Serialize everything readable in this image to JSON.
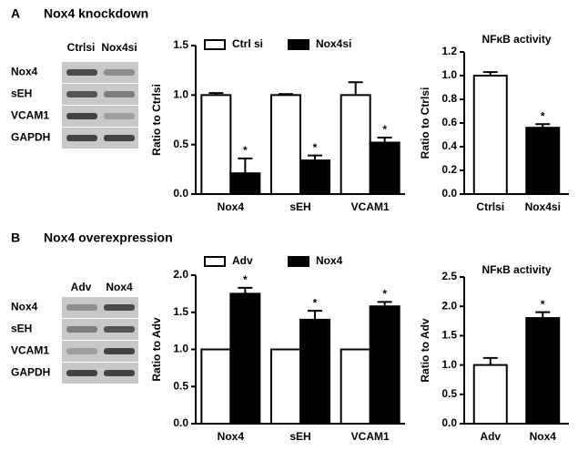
{
  "panels": [
    {
      "letter": "A",
      "title": "Nox4 knockdown",
      "blot": {
        "lanes": [
          "Ctrlsi",
          "Nox4si"
        ],
        "rows": [
          "Nox4",
          "sEH",
          "VCAM1",
          "GAPDH"
        ]
      }
    },
    {
      "letter": "B",
      "title": "Nox4 overexpression",
      "blot": {
        "lanes": [
          "Adv",
          "Nox4"
        ],
        "rows": [
          "Nox4",
          "sEH",
          "VCAM1",
          "GAPDH"
        ]
      }
    }
  ],
  "chart_data": [
    {
      "type": "bar",
      "ylabel": "Ratio to Ctrlsi",
      "categories": [
        "Nox4",
        "sEH",
        "VCAM1"
      ],
      "legend": "top",
      "series": [
        {
          "name": "Ctrl si",
          "color": "#ffffff",
          "values": [
            1.0,
            1.0,
            1.0
          ],
          "errors": [
            0.02,
            0.01,
            0.13
          ]
        },
        {
          "name": "Nox4si",
          "color": "#000000",
          "values": [
            0.21,
            0.34,
            0.52
          ],
          "errors": [
            0.15,
            0.05,
            0.05
          ],
          "significance": [
            "*",
            "*",
            "*"
          ]
        }
      ],
      "ylim": [
        0,
        1.5
      ],
      "yticks": [
        {
          "value": 0,
          "label": "0.0"
        },
        {
          "value": 0.5,
          "label": "0.5"
        },
        {
          "value": 1,
          "label": "1.0"
        },
        {
          "value": 1.5,
          "label": "1.5"
        }
      ]
    },
    {
      "type": "bar",
      "title": "NFκB activity",
      "ylabel": "Ratio to Ctrlsi",
      "categories": [
        "Ctrlsi",
        "Nox4si"
      ],
      "values": [
        1.0,
        0.56
      ],
      "errors": [
        0.03,
        0.03
      ],
      "colors": [
        "#ffffff",
        "#000000"
      ],
      "significance": [
        null,
        "*"
      ],
      "ylim": [
        0,
        1.2
      ],
      "yticks": [
        {
          "value": 0,
          "label": "0.0"
        },
        {
          "value": 0.2,
          "label": "0.2"
        },
        {
          "value": 0.4,
          "label": "0.4"
        },
        {
          "value": 0.6,
          "label": "0.6"
        },
        {
          "value": 0.8,
          "label": "0.8"
        },
        {
          "value": 1,
          "label": "1.0"
        },
        {
          "value": 1.2,
          "label": "1.2"
        }
      ]
    },
    {
      "type": "bar",
      "ylabel": "Ratio to Adv",
      "categories": [
        "Nox4",
        "sEH",
        "VCAM1"
      ],
      "legend": "top",
      "series": [
        {
          "name": "Adv",
          "color": "#ffffff",
          "values": [
            1.0,
            1.0,
            1.0
          ]
        },
        {
          "name": "Nox4",
          "color": "#000000",
          "values": [
            1.75,
            1.4,
            1.58
          ],
          "errors": [
            0.08,
            0.12,
            0.06
          ],
          "significance": [
            "*",
            "*",
            "*"
          ]
        }
      ],
      "ylim": [
        0,
        2.0
      ],
      "yticks": [
        {
          "value": 0,
          "label": "0.0"
        },
        {
          "value": 0.5,
          "label": "0.5"
        },
        {
          "value": 1,
          "label": "1.0"
        },
        {
          "value": 1.5,
          "label": "1.5"
        },
        {
          "value": 2,
          "label": "2.0"
        }
      ]
    },
    {
      "type": "bar",
      "title": "NFκB activity",
      "ylabel": "Ratio to Adv",
      "categories": [
        "Adv",
        "Nox4"
      ],
      "values": [
        1.0,
        1.8
      ],
      "errors": [
        0.12,
        0.1
      ],
      "colors": [
        "#ffffff",
        "#000000"
      ],
      "significance": [
        null,
        "*"
      ],
      "ylim": [
        0,
        2.5
      ],
      "yticks": [
        {
          "value": 0,
          "label": "0.0"
        },
        {
          "value": 0.5,
          "label": "0.5"
        },
        {
          "value": 1,
          "label": "1.0"
        },
        {
          "value": 1.5,
          "label": "1.5"
        },
        {
          "value": 2,
          "label": "2.0"
        },
        {
          "value": 2.5,
          "label": "2.5"
        }
      ]
    }
  ]
}
